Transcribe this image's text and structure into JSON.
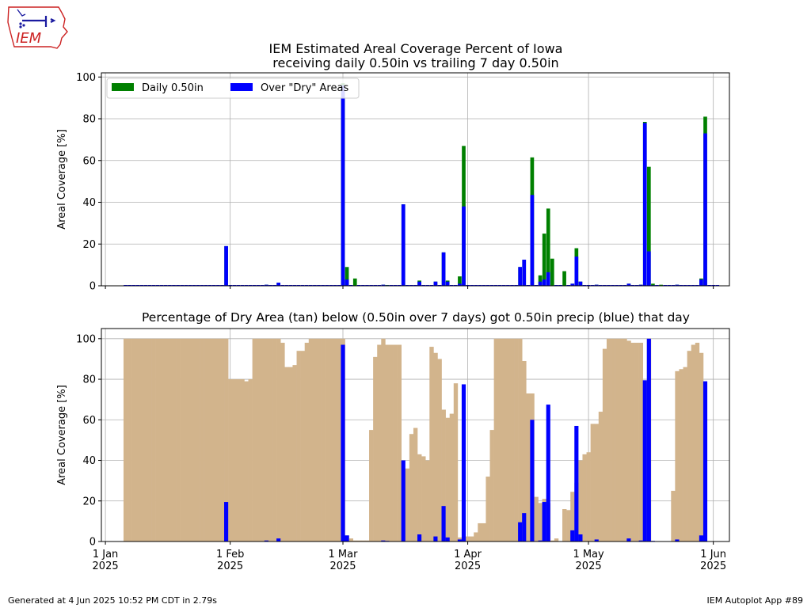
{
  "logo": {
    "text": "IEM"
  },
  "title_line1": "IEM Estimated Areal Coverage Percent of Iowa",
  "title_line2": "receiving daily 0.50in vs trailing 7 day 0.50in",
  "footer_left": "Generated at 4 Jun 2025 10:52 PM CDT in 2.79s",
  "footer_right": "IEM Autoplot App #89",
  "colors": {
    "daily": "#008000",
    "dry_hit": "#0000ff",
    "dry_area": "#d2b48c",
    "grid": "#b0b0b0"
  },
  "chart_data": [
    {
      "type": "bar",
      "title": "",
      "ylabel": "Areal Coverage [%]",
      "ylim": [
        0,
        102
      ],
      "xlim_days": [
        -1,
        155
      ],
      "yticks": [
        0,
        20,
        40,
        60,
        80,
        100
      ],
      "x_axis_dates": "day offset from 1 Jan 2025",
      "legend_placement": "top-left",
      "grid": true,
      "series": [
        {
          "name": "Daily 0.50in",
          "color": "#008000",
          "points": [
            [
              30,
              19
            ],
            [
              40,
              0.5
            ],
            [
              43,
              1.5
            ],
            [
              59,
              97
            ],
            [
              60,
              9
            ],
            [
              62,
              3.5
            ],
            [
              69,
              0.5
            ],
            [
              70,
              0.3
            ],
            [
              74,
              39
            ],
            [
              78,
              2.5
            ],
            [
              82,
              2
            ],
            [
              84,
              16
            ],
            [
              85,
              2.5
            ],
            [
              88,
              4.5
            ],
            [
              89,
              67
            ],
            [
              103,
              9
            ],
            [
              104,
              12.5
            ],
            [
              106,
              61.5
            ],
            [
              108,
              5
            ],
            [
              109,
              25
            ],
            [
              110,
              37
            ],
            [
              111,
              13
            ],
            [
              114,
              7
            ],
            [
              116,
              1
            ],
            [
              117,
              18
            ],
            [
              118,
              2
            ],
            [
              122,
              0.5
            ],
            [
              130,
              1
            ],
            [
              133,
              0.5
            ],
            [
              134,
              78.5
            ],
            [
              135,
              57
            ],
            [
              136,
              1
            ],
            [
              138,
              0.5
            ],
            [
              142,
              0.5
            ],
            [
              148,
              3.5
            ],
            [
              149,
              81
            ]
          ]
        },
        {
          "name": "Over \"Dry\" Areas",
          "color": "#0000ff",
          "points": [
            [
              30,
              19
            ],
            [
              40,
              0.5
            ],
            [
              43,
              1.5
            ],
            [
              59,
              96
            ],
            [
              60,
              3
            ],
            [
              69,
              0.5
            ],
            [
              70,
              0.2
            ],
            [
              74,
              39
            ],
            [
              78,
              2
            ],
            [
              82,
              2
            ],
            [
              84,
              16
            ],
            [
              85,
              2
            ],
            [
              88,
              1
            ],
            [
              89,
              38
            ],
            [
              103,
              9
            ],
            [
              104,
              12.5
            ],
            [
              106,
              43.5
            ],
            [
              108,
              2
            ],
            [
              109,
              3
            ],
            [
              110,
              6.5
            ],
            [
              116,
              1
            ],
            [
              117,
              14
            ],
            [
              118,
              2
            ],
            [
              122,
              0.5
            ],
            [
              130,
              1
            ],
            [
              133,
              0.5
            ],
            [
              134,
              78
            ],
            [
              135,
              16.5
            ],
            [
              136,
              0.3
            ],
            [
              142,
              0.5
            ],
            [
              148,
              3
            ],
            [
              149,
              73
            ]
          ]
        }
      ]
    },
    {
      "type": "bar",
      "title": "Percentage of Dry Area (tan) below (0.50in over 7 days) got 0.50in precip (blue) that day",
      "ylabel": "Areal Coverage [%]",
      "ylim": [
        0,
        105
      ],
      "xlim_days": [
        -1,
        155
      ],
      "yticks": [
        0,
        20,
        40,
        60,
        80,
        100
      ],
      "grid": true,
      "xticks": [
        {
          "day": 0,
          "line1": "1 Jan",
          "line2": "2025"
        },
        {
          "day": 31,
          "line1": "1 Feb",
          "line2": "2025"
        },
        {
          "day": 59,
          "line1": "1 Mar",
          "line2": "2025"
        },
        {
          "day": 90,
          "line1": "1 Apr",
          "line2": "2025"
        },
        {
          "day": 120,
          "line1": "1 May",
          "line2": "2025"
        },
        {
          "day": 151,
          "line1": "1 Jun",
          "line2": "2025"
        }
      ],
      "dry_area": [
        [
          5,
          100
        ],
        [
          6,
          100
        ],
        [
          7,
          100
        ],
        [
          8,
          100
        ],
        [
          9,
          100
        ],
        [
          10,
          100
        ],
        [
          11,
          100
        ],
        [
          12,
          100
        ],
        [
          13,
          100
        ],
        [
          14,
          100
        ],
        [
          15,
          100
        ],
        [
          16,
          100
        ],
        [
          17,
          100
        ],
        [
          18,
          100
        ],
        [
          19,
          100
        ],
        [
          20,
          100
        ],
        [
          21,
          100
        ],
        [
          22,
          100
        ],
        [
          23,
          100
        ],
        [
          24,
          100
        ],
        [
          25,
          100
        ],
        [
          26,
          100
        ],
        [
          27,
          100
        ],
        [
          28,
          100
        ],
        [
          29,
          100
        ],
        [
          30,
          100
        ],
        [
          31,
          80
        ],
        [
          32,
          80
        ],
        [
          33,
          80
        ],
        [
          34,
          80
        ],
        [
          35,
          79
        ],
        [
          36,
          80
        ],
        [
          37,
          100
        ],
        [
          38,
          100
        ],
        [
          39,
          100
        ],
        [
          40,
          100
        ],
        [
          41,
          100
        ],
        [
          42,
          100
        ],
        [
          43,
          100
        ],
        [
          44,
          98
        ],
        [
          45,
          86
        ],
        [
          46,
          86
        ],
        [
          47,
          87
        ],
        [
          48,
          94
        ],
        [
          49,
          94
        ],
        [
          50,
          98
        ],
        [
          51,
          100
        ],
        [
          52,
          100
        ],
        [
          53,
          100
        ],
        [
          54,
          100
        ],
        [
          55,
          100
        ],
        [
          56,
          100
        ],
        [
          57,
          100
        ],
        [
          58,
          100
        ],
        [
          59,
          100
        ],
        [
          60,
          3
        ],
        [
          61,
          1.5
        ],
        [
          62,
          0.5
        ],
        [
          63,
          0.5
        ],
        [
          64,
          0.5
        ],
        [
          65,
          0.5
        ],
        [
          66,
          55
        ],
        [
          67,
          91
        ],
        [
          68,
          97
        ],
        [
          69,
          100
        ],
        [
          70,
          97
        ],
        [
          71,
          97
        ],
        [
          72,
          97
        ],
        [
          73,
          97
        ],
        [
          74,
          36
        ],
        [
          75,
          36
        ],
        [
          76,
          53
        ],
        [
          77,
          56
        ],
        [
          78,
          43
        ],
        [
          79,
          42
        ],
        [
          80,
          40
        ],
        [
          81,
          96
        ],
        [
          82,
          93
        ],
        [
          83,
          90
        ],
        [
          84,
          65
        ],
        [
          85,
          61
        ],
        [
          86,
          63
        ],
        [
          87,
          78
        ],
        [
          88,
          2
        ],
        [
          89,
          1
        ],
        [
          90,
          2.5
        ],
        [
          91,
          2.5
        ],
        [
          92,
          4.5
        ],
        [
          93,
          9
        ],
        [
          94,
          9
        ],
        [
          95,
          32
        ],
        [
          96,
          55
        ],
        [
          97,
          100
        ],
        [
          98,
          100
        ],
        [
          99,
          100
        ],
        [
          100,
          100
        ],
        [
          101,
          100
        ],
        [
          102,
          100
        ],
        [
          103,
          100
        ],
        [
          104,
          89
        ],
        [
          105,
          73
        ],
        [
          106,
          73
        ],
        [
          107,
          22
        ],
        [
          108,
          19
        ],
        [
          109,
          21
        ],
        [
          110,
          19
        ],
        [
          111,
          0.5
        ],
        [
          112,
          1.5
        ],
        [
          114,
          16
        ],
        [
          115,
          15.5
        ],
        [
          116,
          24.5
        ],
        [
          117,
          29
        ],
        [
          118,
          40
        ],
        [
          119,
          43
        ],
        [
          120,
          44
        ],
        [
          121,
          58
        ],
        [
          122,
          58
        ],
        [
          123,
          64
        ],
        [
          124,
          95
        ],
        [
          125,
          100
        ],
        [
          126,
          100
        ],
        [
          127,
          100
        ],
        [
          128,
          100
        ],
        [
          129,
          100
        ],
        [
          130,
          99
        ],
        [
          131,
          98
        ],
        [
          132,
          98
        ],
        [
          133,
          98
        ],
        [
          134,
          79
        ],
        [
          135,
          100
        ],
        [
          141,
          25
        ],
        [
          142,
          84
        ],
        [
          143,
          85
        ],
        [
          144,
          86
        ],
        [
          145,
          94
        ],
        [
          146,
          97
        ],
        [
          147,
          98
        ],
        [
          148,
          93
        ]
      ],
      "hit_pct": [
        [
          30,
          19.5
        ],
        [
          40,
          0.5
        ],
        [
          43,
          1.5
        ],
        [
          59,
          97
        ],
        [
          60,
          3
        ],
        [
          69,
          0.5
        ],
        [
          70,
          0.3
        ],
        [
          74,
          40
        ],
        [
          78,
          3.5
        ],
        [
          82,
          2.5
        ],
        [
          84,
          17.5
        ],
        [
          85,
          2
        ],
        [
          88,
          1
        ],
        [
          89,
          77.5
        ],
        [
          103,
          9.5
        ],
        [
          104,
          14
        ],
        [
          106,
          60
        ],
        [
          108,
          0.5
        ],
        [
          109,
          19.5
        ],
        [
          110,
          67.5
        ],
        [
          116,
          5.5
        ],
        [
          117,
          57
        ],
        [
          118,
          3.5
        ],
        [
          122,
          1
        ],
        [
          130,
          1.5
        ],
        [
          133,
          0.5
        ],
        [
          134,
          79.5
        ],
        [
          135,
          100
        ],
        [
          136,
          0.3
        ],
        [
          142,
          1
        ],
        [
          148,
          3
        ],
        [
          149,
          79
        ]
      ]
    }
  ]
}
